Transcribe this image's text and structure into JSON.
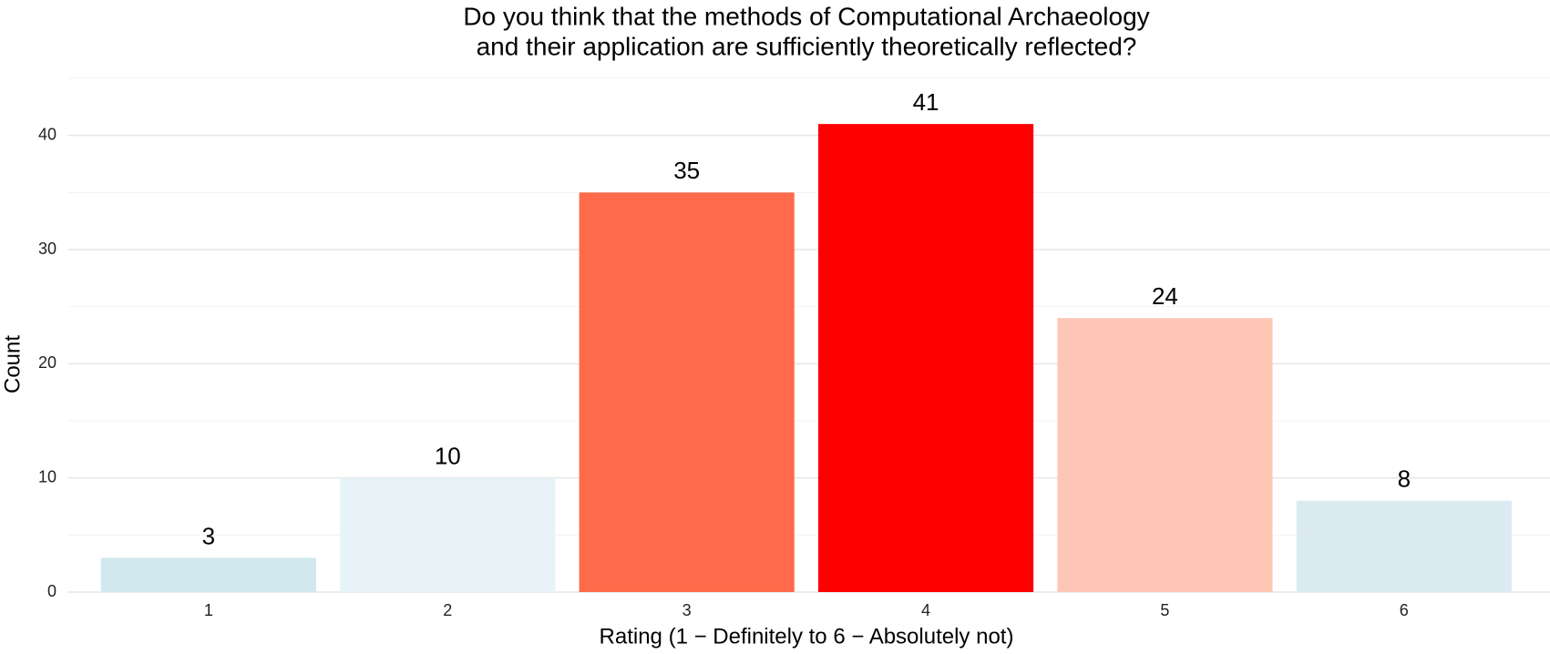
{
  "chart_data": {
    "type": "bar",
    "title": [
      "Do you think that the methods of Computational Archaeology",
      "and their application are sufficiently theoretically reflected?"
    ],
    "x_label": "Rating (1 − Definitely to 6 − Absolutely not)",
    "y_label": "Count",
    "categories": [
      "1",
      "2",
      "3",
      "4",
      "5",
      "6"
    ],
    "values": [
      3,
      10,
      35,
      41,
      24,
      8
    ],
    "colors": [
      "#d0e8ee",
      "#e8f3f8",
      "#ff6a4a",
      "#ff0000",
      "#fec6b5",
      "#dcebf2"
    ],
    "ylim": [
      0,
      45
    ],
    "yticks": [
      0,
      10,
      20,
      30,
      40
    ],
    "minor_yticks": [
      5,
      15,
      25,
      35,
      45
    ],
    "grid": true
  }
}
